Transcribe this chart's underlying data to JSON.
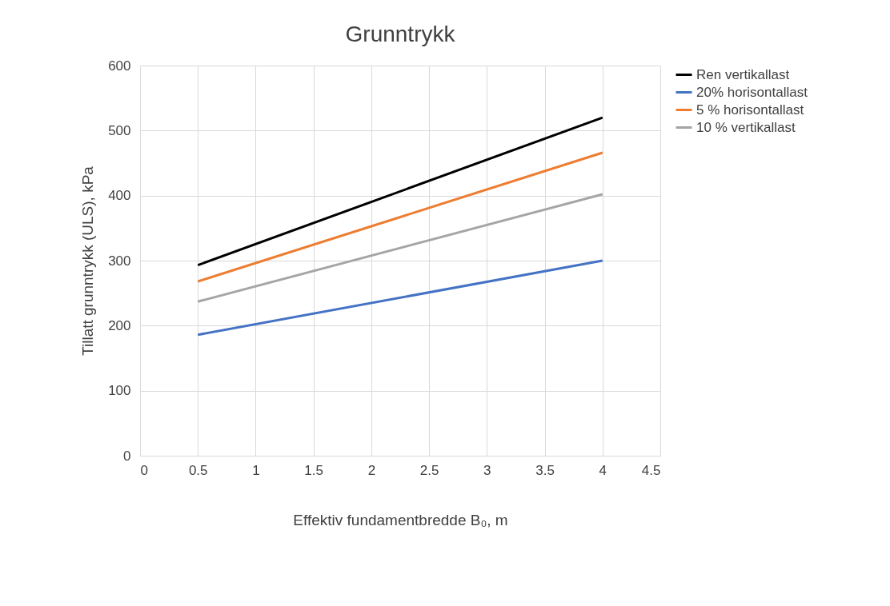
{
  "chart_data": {
    "type": "line",
    "title": "Grunntrykk",
    "xlabel": "Effektiv fundamentbredde B₀, m",
    "ylabel": "Tillatt grunntrykk (ULS), kPa",
    "x": [
      0.5,
      4
    ],
    "series": [
      {
        "name": "Ren vertikallast",
        "color": "#000000",
        "values": [
          293,
          520
        ]
      },
      {
        "name": "20% horisontallast",
        "color": "#4472c4",
        "values": [
          186,
          300
        ]
      },
      {
        "name": "5 % horisontallast",
        "color": "#ed7d31",
        "values": [
          268,
          466
        ]
      },
      {
        "name": "10 % vertikallast",
        "color": "#a5a5a5",
        "values": [
          237,
          402
        ]
      }
    ],
    "xlim": [
      0,
      4.5
    ],
    "xticks": [
      0,
      0.5,
      1,
      1.5,
      2,
      2.5,
      3,
      3.5,
      4,
      4.5
    ],
    "ylim": [
      0,
      600
    ],
    "yticks": [
      0,
      100,
      200,
      300,
      400,
      500,
      600
    ],
    "grid": true,
    "legend": "right",
    "marker": "none",
    "line_style": "solid"
  }
}
